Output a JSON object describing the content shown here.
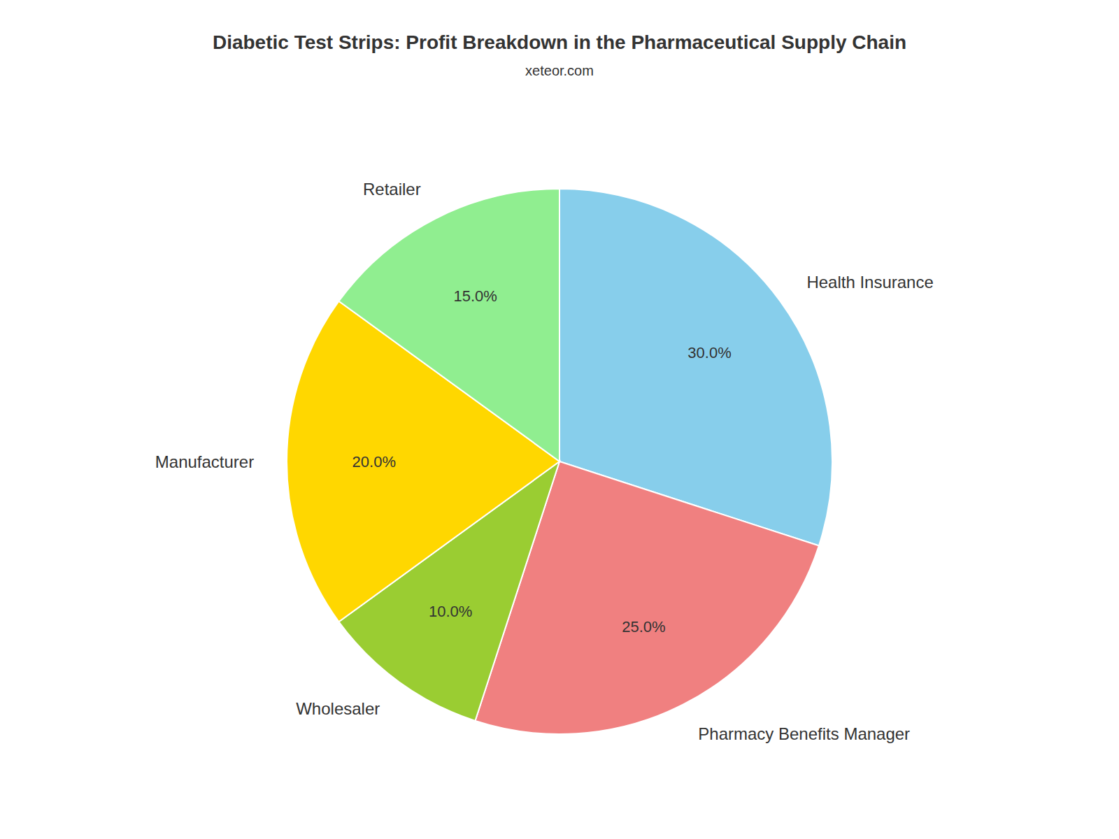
{
  "chart_data": {
    "type": "pie",
    "title": "Diabetic Test Strips: Profit Breakdown in the Pharmaceutical Supply Chain",
    "subtitle": "xeteor.com",
    "categories": [
      "Health Insurance",
      "Pharmacy Benefits Manager",
      "Wholesaler",
      "Manufacturer",
      "Retailer"
    ],
    "values": [
      30.0,
      25.0,
      10.0,
      20.0,
      15.0
    ],
    "value_labels": [
      "30.0%",
      "25.0%",
      "10.0%",
      "20.0%",
      "15.0%"
    ],
    "colors": [
      "#87CEEB",
      "#F08080",
      "#9ACD32",
      "#FFD700",
      "#90EE90"
    ],
    "data_labels": true
  }
}
